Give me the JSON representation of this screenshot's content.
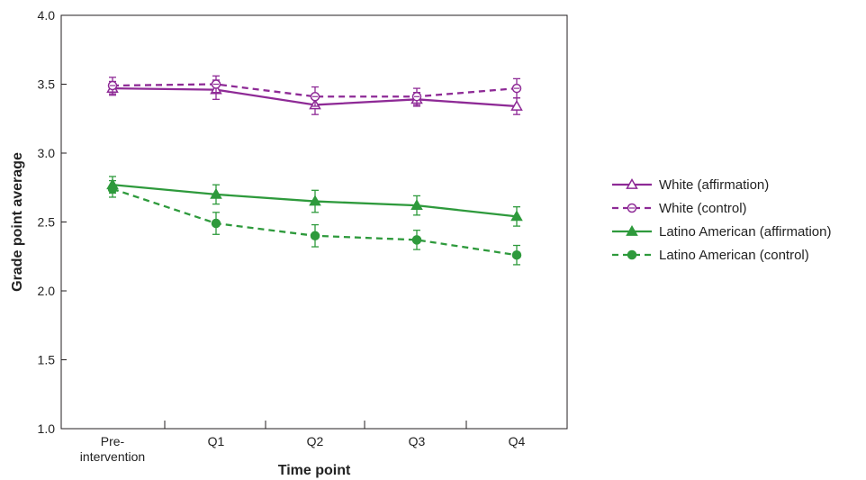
{
  "chart_data": {
    "type": "line",
    "title": "",
    "xlabel": "Time point",
    "ylabel": "Grade point average",
    "categories": [
      "Pre-\nintervention",
      "Q1",
      "Q2",
      "Q3",
      "Q4"
    ],
    "ylim": [
      1.0,
      4.0
    ],
    "yticks": [
      "1.0",
      "1.5",
      "2.0",
      "2.5",
      "3.0",
      "3.5",
      "4.0"
    ],
    "grid": false,
    "legend_position": "right",
    "series": [
      {
        "name": "White (affirmation)",
        "values": [
          3.47,
          3.46,
          3.35,
          3.39,
          3.34
        ],
        "errors": [
          0.05,
          0.07,
          0.07,
          0.05,
          0.06
        ],
        "color": "#8e2a96",
        "dashed": false,
        "marker": "triangle-open"
      },
      {
        "name": "White (control)",
        "values": [
          3.49,
          3.5,
          3.41,
          3.41,
          3.47
        ],
        "errors": [
          0.06,
          0.06,
          0.07,
          0.06,
          0.07
        ],
        "color": "#8e2a96",
        "dashed": true,
        "marker": "circle-open"
      },
      {
        "name": "Latino American (affirmation)",
        "values": [
          2.77,
          2.7,
          2.65,
          2.62,
          2.54
        ],
        "errors": [
          0.06,
          0.07,
          0.08,
          0.07,
          0.07
        ],
        "color": "#2e9a3c",
        "dashed": false,
        "marker": "triangle-filled"
      },
      {
        "name": "Latino American (control)",
        "values": [
          2.74,
          2.49,
          2.4,
          2.37,
          2.26
        ],
        "errors": [
          0.06,
          0.08,
          0.08,
          0.07,
          0.07
        ],
        "color": "#2e9a3c",
        "dashed": true,
        "marker": "circle-filled"
      }
    ]
  }
}
